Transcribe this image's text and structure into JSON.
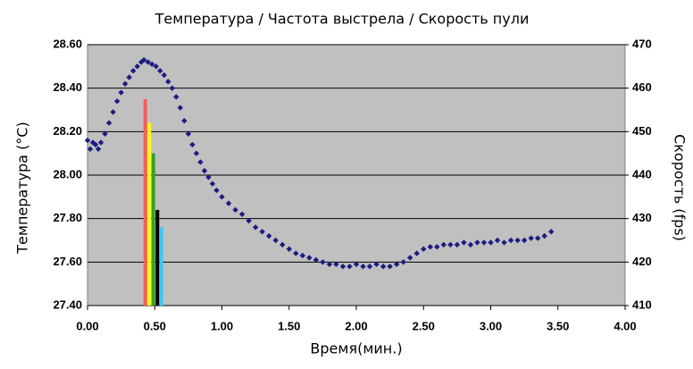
{
  "chart_data": {
    "type": "scatter",
    "title": "Температура / Частота выстрела / Скорость пули",
    "x_label": "Время(мин.)",
    "y_label": "Температура (°C)",
    "y2_label": "Скорость (fps)",
    "xlim": [
      0,
      4
    ],
    "xticks": [
      {
        "value": 0,
        "label": "0.00"
      },
      {
        "value": 0.5,
        "label": "0.50"
      },
      {
        "value": 1,
        "label": "1.00"
      },
      {
        "value": 1.5,
        "label": "1.50"
      },
      {
        "value": 2,
        "label": "2.00"
      },
      {
        "value": 2.5,
        "label": "2.50"
      },
      {
        "value": 3,
        "label": "3.00"
      },
      {
        "value": 3.5,
        "label": "3.50"
      },
      {
        "value": 4,
        "label": "4.00"
      }
    ],
    "ylim": [
      27.4,
      28.6
    ],
    "yticks": [
      {
        "value": 27.4,
        "label": "27.40"
      },
      {
        "value": 27.6,
        "label": "27.60"
      },
      {
        "value": 27.8,
        "label": "27.80"
      },
      {
        "value": 28,
        "label": "28.00"
      },
      {
        "value": 28.2,
        "label": "28.20"
      },
      {
        "value": 28.4,
        "label": "28.40"
      },
      {
        "value": 28.6,
        "label": "28.60"
      }
    ],
    "y2lim": [
      410,
      470
    ],
    "y2ticks": [
      410,
      420,
      430,
      440,
      450,
      460,
      470
    ],
    "grid": true,
    "series": [
      {
        "color": "#1c1c80",
        "x": [
          0,
          0.02,
          0.04,
          0.06,
          0.08,
          0.1,
          0.13,
          0.16,
          0.19,
          0.22,
          0.25,
          0.28,
          0.31,
          0.34,
          0.37,
          0.4,
          0.42,
          0.45,
          0.48,
          0.51,
          0.54,
          0.57,
          0.6,
          0.63,
          0.66,
          0.69,
          0.72,
          0.75,
          0.78,
          0.81,
          0.84,
          0.87,
          0.9,
          0.93,
          0.96,
          1,
          1.05,
          1.1,
          1.15,
          1.2,
          1.25,
          1.3,
          1.35,
          1.4,
          1.45,
          1.5,
          1.55,
          1.6,
          1.65,
          1.7,
          1.75,
          1.8,
          1.85,
          1.9,
          1.95,
          2,
          2.05,
          2.1,
          2.15,
          2.2,
          2.25,
          2.3,
          2.35,
          2.4,
          2.45,
          2.5,
          2.55,
          2.6,
          2.65,
          2.7,
          2.75,
          2.8,
          2.85,
          2.9,
          2.95,
          3,
          3.05,
          3.1,
          3.15,
          3.2,
          3.25,
          3.3,
          3.35,
          3.4,
          3.45
        ],
        "values": [
          28.16,
          28.12,
          28.15,
          28.14,
          28.12,
          28.15,
          28.19,
          28.24,
          28.29,
          28.34,
          28.38,
          28.42,
          28.45,
          28.48,
          28.5,
          28.52,
          28.53,
          28.52,
          28.51,
          28.5,
          28.48,
          28.46,
          28.43,
          28.4,
          28.36,
          28.31,
          28.25,
          28.19,
          28.14,
          28.1,
          28.06,
          28.02,
          27.99,
          27.96,
          27.93,
          27.9,
          27.87,
          27.84,
          27.82,
          27.79,
          27.76,
          27.74,
          27.72,
          27.7,
          27.68,
          27.66,
          27.64,
          27.63,
          27.62,
          27.61,
          27.6,
          27.59,
          27.59,
          27.58,
          27.58,
          27.59,
          27.58,
          27.58,
          27.59,
          27.58,
          27.58,
          27.59,
          27.6,
          27.62,
          27.64,
          27.66,
          27.67,
          27.67,
          27.68,
          27.68,
          27.68,
          27.69,
          27.68,
          27.69,
          27.69,
          27.69,
          27.7,
          27.69,
          27.7,
          27.7,
          27.7,
          27.71,
          27.71,
          27.72,
          27.74
        ]
      },
      {
        "color": "#ff5a5a",
        "axis": "y2",
        "x": [
          0.43
        ],
        "values": [
          457.5
        ]
      },
      {
        "color": "#ffff00",
        "axis": "y2",
        "x": [
          0.46
        ],
        "values": [
          452
        ]
      },
      {
        "color": "#2ea52e",
        "axis": "y2",
        "x": [
          0.49
        ],
        "values": [
          445
        ]
      },
      {
        "color": "#000000",
        "axis": "y2",
        "x": [
          0.52
        ],
        "values": [
          432
        ]
      },
      {
        "color": "#33ccff",
        "axis": "y2",
        "x": [
          0.55
        ],
        "values": [
          428
        ]
      }
    ]
  }
}
